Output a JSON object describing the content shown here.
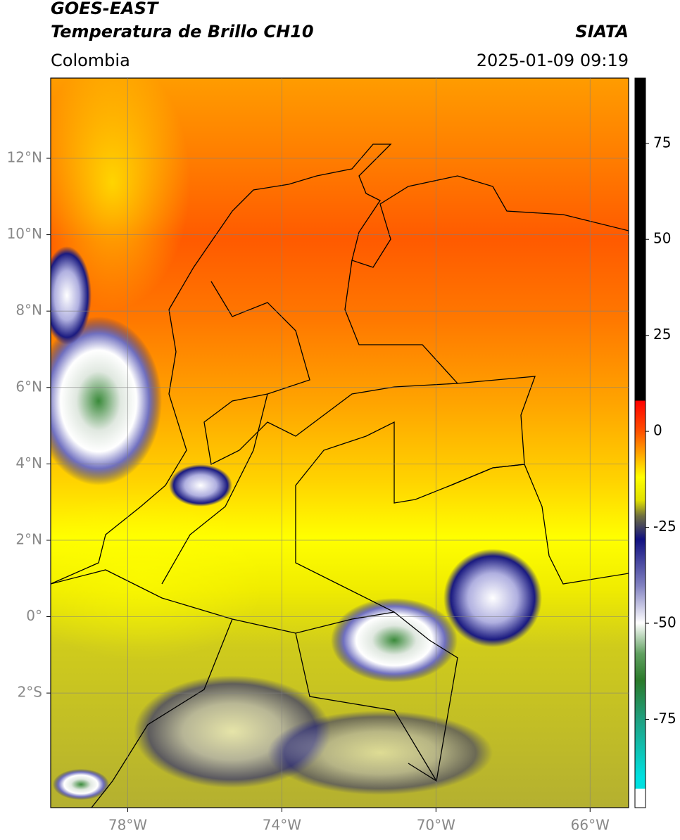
{
  "header": {
    "title": "GOES-EAST",
    "subtitle": "Temperatura de Brillo CH10",
    "region": "Colombia",
    "source": "SIATA",
    "datetime": "2025-01-09 09:19"
  },
  "map": {
    "lonlim": [
      -80,
      -65
    ],
    "latlim": [
      -5,
      14.1
    ],
    "lonticks": [
      {
        "value": -78,
        "label": "78°W"
      },
      {
        "value": -74,
        "label": "74°W"
      },
      {
        "value": -70,
        "label": "70°W"
      },
      {
        "value": -66,
        "label": "66°W"
      }
    ],
    "latticks": [
      {
        "value": -2,
        "label": "2°S"
      },
      {
        "value": 0,
        "label": "0°"
      },
      {
        "value": 2,
        "label": "2°N"
      },
      {
        "value": 4,
        "label": "4°N"
      },
      {
        "value": 6,
        "label": "6°N"
      },
      {
        "value": 8,
        "label": "8°N"
      },
      {
        "value": 10,
        "label": "10°N"
      },
      {
        "value": 12,
        "label": "12°N"
      }
    ]
  },
  "colorbar": {
    "lim": [
      -98,
      92
    ],
    "ticks": [
      -75,
      -50,
      -25,
      0,
      25,
      50,
      75
    ]
  }
}
